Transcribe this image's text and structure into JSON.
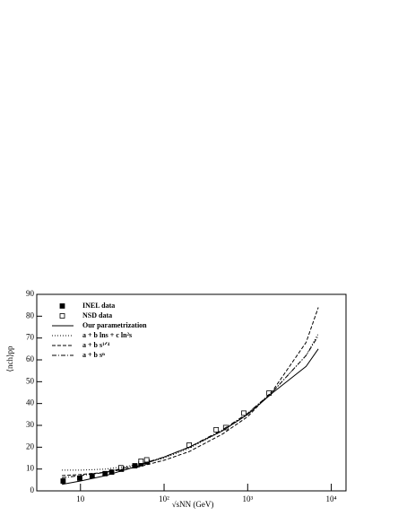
{
  "chart_data": {
    "type": "line",
    "log_x": true,
    "x_label": "√sNN (GeV)",
    "y_label": "⟨nch⟩pp",
    "xlim": [
      3,
      15000
    ],
    "ylim": [
      0,
      90
    ],
    "xticks": [
      10,
      {
        "value": 100,
        "label": "10²"
      },
      {
        "value": 1000,
        "label": "10³"
      },
      {
        "value": 10000,
        "label": "10⁴"
      }
    ],
    "yticks": [
      0,
      10,
      20,
      30,
      40,
      50,
      60,
      70,
      80,
      90
    ],
    "series": [
      {
        "name": "INEL data",
        "color": "#000000",
        "marker": "square-filled",
        "x": [
          6.2,
          9.8,
          13.8,
          19.7,
          23.6,
          30.8,
          44.7,
          52.8,
          62.8
        ],
        "values": [
          4.5,
          5.8,
          6.9,
          7.9,
          8.6,
          9.9,
          11.5,
          12.4,
          13.2
        ]
      },
      {
        "name": "NSD data",
        "color": "#000000",
        "marker": "square-open",
        "x": [
          30.4,
          53,
          62,
          200,
          420,
          546,
          900,
          1800
        ],
        "values": [
          10.6,
          13.6,
          14.2,
          21.0,
          28.0,
          29.0,
          35.6,
          44.8
        ]
      },
      {
        "name": "Our parametrization",
        "color": "#000000",
        "dash": "solid",
        "x": [
          6,
          10,
          20,
          50,
          100,
          200,
          500,
          1000,
          2000,
          5000,
          7000
        ],
        "values": [
          3,
          4.5,
          7,
          11.5,
          15.5,
          20,
          27.5,
          35,
          45,
          57,
          65
        ]
      },
      {
        "name": "a + b lns + c ln²s",
        "color": "#000000",
        "dash": "dotted",
        "x": [
          6,
          10,
          20,
          50,
          100,
          200,
          500,
          1000,
          2000,
          5000,
          7000
        ],
        "values": [
          9.5,
          9.5,
          10,
          12,
          15,
          19.5,
          27.5,
          35.5,
          45.5,
          62,
          72
        ]
      },
      {
        "name": "a + b s¹ᐟ⁴",
        "color": "#000000",
        "dash": "dashed",
        "x": [
          6,
          10,
          20,
          50,
          100,
          200,
          500,
          1000,
          2000,
          5000,
          7000
        ],
        "values": [
          7,
          7.5,
          8.5,
          11,
          14,
          18,
          26,
          34,
          46,
          68,
          84
        ]
      },
      {
        "name": "a + b sⁿ",
        "color": "#000000",
        "dash": "dashdot",
        "x": [
          6,
          10,
          20,
          50,
          100,
          200,
          500,
          1000,
          2000,
          5000,
          7000
        ],
        "values": [
          6,
          7,
          8.5,
          12,
          15.5,
          20,
          28,
          35.5,
          45.5,
          62,
          71
        ]
      }
    ]
  }
}
